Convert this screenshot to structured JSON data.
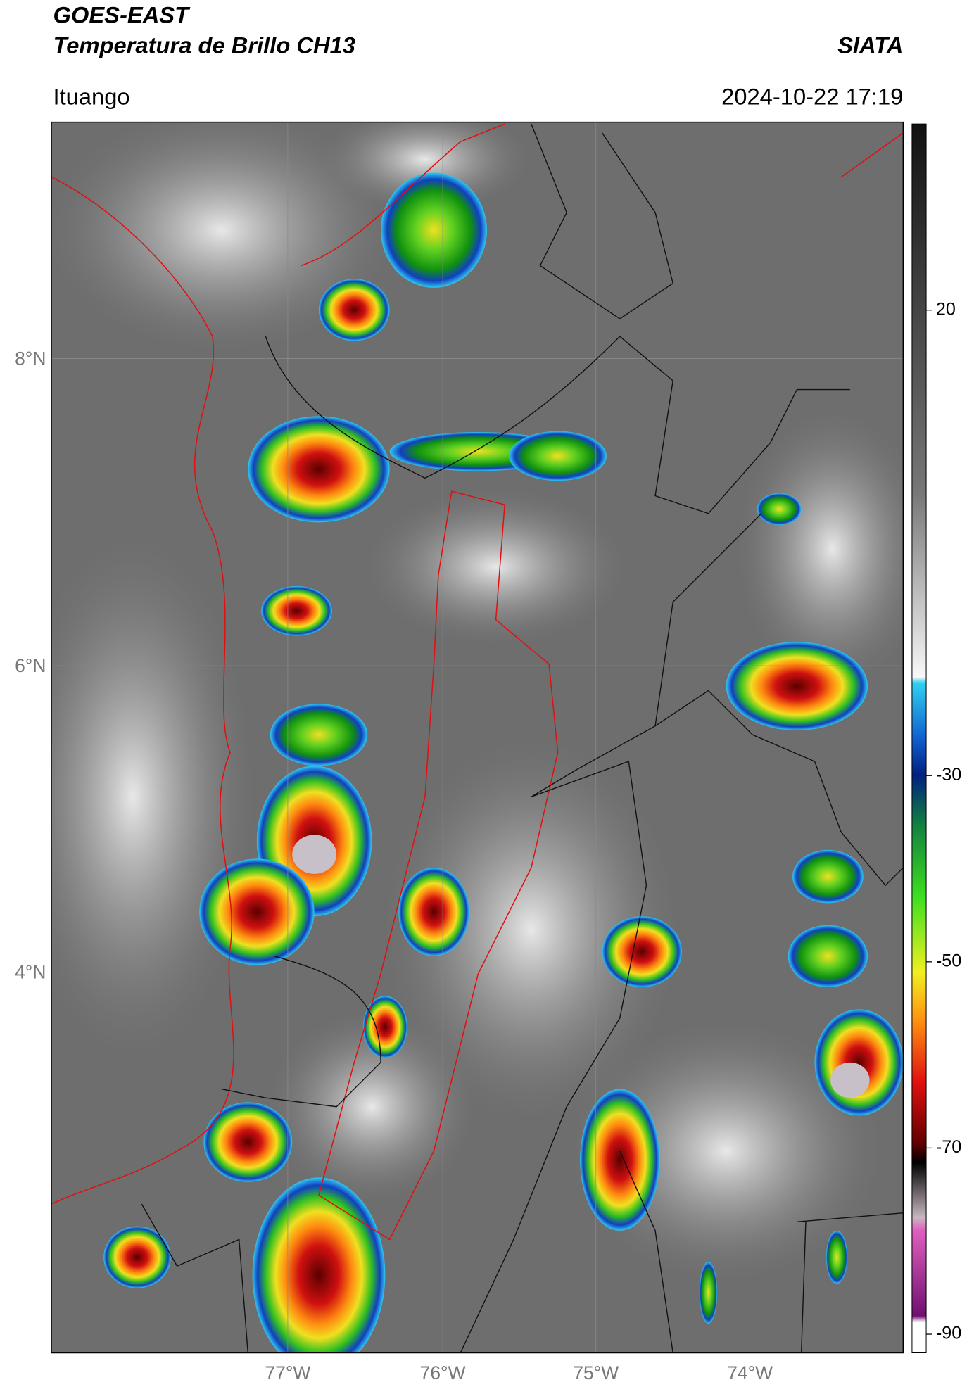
{
  "header": {
    "title": "GOES-EAST",
    "subtitle": "Temperatura de Brillo CH13",
    "brand": "SIATA",
    "location": "Ituango",
    "datetime": "2024-10-22 17:19"
  },
  "map": {
    "xticks": [
      "77°W",
      "76°W",
      "75°W",
      "74°W"
    ],
    "yticks": [
      "8°N",
      "6°N",
      "4°N"
    ]
  },
  "colorbar": {
    "lim": [
      -92,
      40
    ],
    "ticks": [
      20,
      -30,
      -50,
      -70,
      -90
    ]
  }
}
